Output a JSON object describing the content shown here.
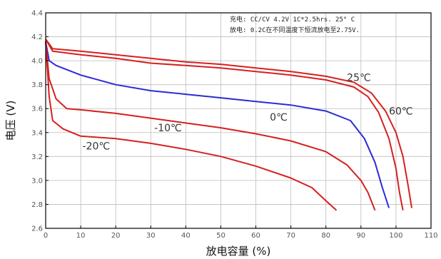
{
  "chart_data": {
    "type": "line",
    "xlabel": "放电容量 (%)",
    "ylabel": "电压 (V)",
    "xlim": [
      0,
      110
    ],
    "ylim": [
      2.6,
      4.4
    ],
    "x_ticks": [
      0,
      10,
      20,
      30,
      40,
      50,
      60,
      70,
      80,
      90,
      100,
      110
    ],
    "y_ticks": [
      2.6,
      2.8,
      3.0,
      3.2,
      3.4,
      3.6,
      3.8,
      4.0,
      4.2,
      4.4
    ],
    "x_tick_labels": [
      "0",
      "10",
      "20",
      "30",
      "40",
      "50",
      "60",
      "70",
      "80",
      "90",
      "100",
      "110"
    ],
    "y_tick_labels": [
      "2.6",
      "2.8",
      "3.0",
      "3.2",
      "3.4",
      "3.6",
      "3.8",
      "4.0",
      "4.2",
      "4.4"
    ],
    "grid": true,
    "annotations": [
      "充电: CC/CV 4.2V 1C*2.5hrs. 25° C",
      "放电: 0.2C在不同温度下恒流放电至2.75V."
    ],
    "series": [
      {
        "name": "60℃",
        "color": "#d62020",
        "points": [
          [
            0,
            4.18
          ],
          [
            2,
            4.1
          ],
          [
            10,
            4.08
          ],
          [
            20,
            4.05
          ],
          [
            30,
            4.02
          ],
          [
            40,
            3.99
          ],
          [
            50,
            3.97
          ],
          [
            60,
            3.94
          ],
          [
            70,
            3.91
          ],
          [
            80,
            3.87
          ],
          [
            88,
            3.82
          ],
          [
            93,
            3.73
          ],
          [
            97,
            3.58
          ],
          [
            100,
            3.4
          ],
          [
            102,
            3.2
          ],
          [
            103.5,
            2.95
          ],
          [
            104.5,
            2.77
          ]
        ]
      },
      {
        "name": "25℃",
        "color": "#d62020",
        "points": [
          [
            0,
            4.18
          ],
          [
            2,
            4.08
          ],
          [
            10,
            4.05
          ],
          [
            20,
            4.02
          ],
          [
            30,
            3.98
          ],
          [
            40,
            3.96
          ],
          [
            50,
            3.94
          ],
          [
            60,
            3.91
          ],
          [
            70,
            3.88
          ],
          [
            80,
            3.84
          ],
          [
            88,
            3.78
          ],
          [
            92,
            3.7
          ],
          [
            95,
            3.57
          ],
          [
            98,
            3.35
          ],
          [
            100,
            3.1
          ],
          [
            101,
            2.9
          ],
          [
            102,
            2.75
          ]
        ]
      },
      {
        "name": "0℃",
        "color": "#2b2bd6",
        "points": [
          [
            0,
            4.16
          ],
          [
            1,
            4.0
          ],
          [
            3,
            3.96
          ],
          [
            10,
            3.88
          ],
          [
            20,
            3.8
          ],
          [
            30,
            3.75
          ],
          [
            40,
            3.72
          ],
          [
            50,
            3.69
          ],
          [
            60,
            3.66
          ],
          [
            70,
            3.63
          ],
          [
            80,
            3.58
          ],
          [
            87,
            3.5
          ],
          [
            91,
            3.35
          ],
          [
            94,
            3.15
          ],
          [
            96,
            2.95
          ],
          [
            98,
            2.77
          ]
        ]
      },
      {
        "name": "-10℃",
        "color": "#d62020",
        "points": [
          [
            0,
            4.16
          ],
          [
            1,
            3.85
          ],
          [
            3,
            3.68
          ],
          [
            6,
            3.6
          ],
          [
            10,
            3.59
          ],
          [
            20,
            3.56
          ],
          [
            30,
            3.52
          ],
          [
            40,
            3.48
          ],
          [
            50,
            3.44
          ],
          [
            60,
            3.39
          ],
          [
            70,
            3.33
          ],
          [
            80,
            3.24
          ],
          [
            86,
            3.13
          ],
          [
            90,
            3.0
          ],
          [
            92,
            2.9
          ],
          [
            94,
            2.75
          ]
        ]
      },
      {
        "name": "-20℃",
        "color": "#d62020",
        "points": [
          [
            0,
            4.16
          ],
          [
            1,
            3.7
          ],
          [
            2,
            3.5
          ],
          [
            5,
            3.43
          ],
          [
            10,
            3.37
          ],
          [
            20,
            3.35
          ],
          [
            30,
            3.31
          ],
          [
            40,
            3.26
          ],
          [
            50,
            3.2
          ],
          [
            60,
            3.12
          ],
          [
            70,
            3.02
          ],
          [
            76,
            2.94
          ],
          [
            80,
            2.83
          ],
          [
            83,
            2.75
          ]
        ]
      }
    ],
    "labels": [
      {
        "text": "60℃",
        "x": 98,
        "y": 3.55
      },
      {
        "text": "25℃",
        "x": 86,
        "y": 3.83
      },
      {
        "text": "0℃",
        "x": 64,
        "y": 3.5
      },
      {
        "text": "-10℃",
        "x": 31,
        "y": 3.41
      },
      {
        "text": "-20℃",
        "x": 10.5,
        "y": 3.26
      }
    ]
  }
}
